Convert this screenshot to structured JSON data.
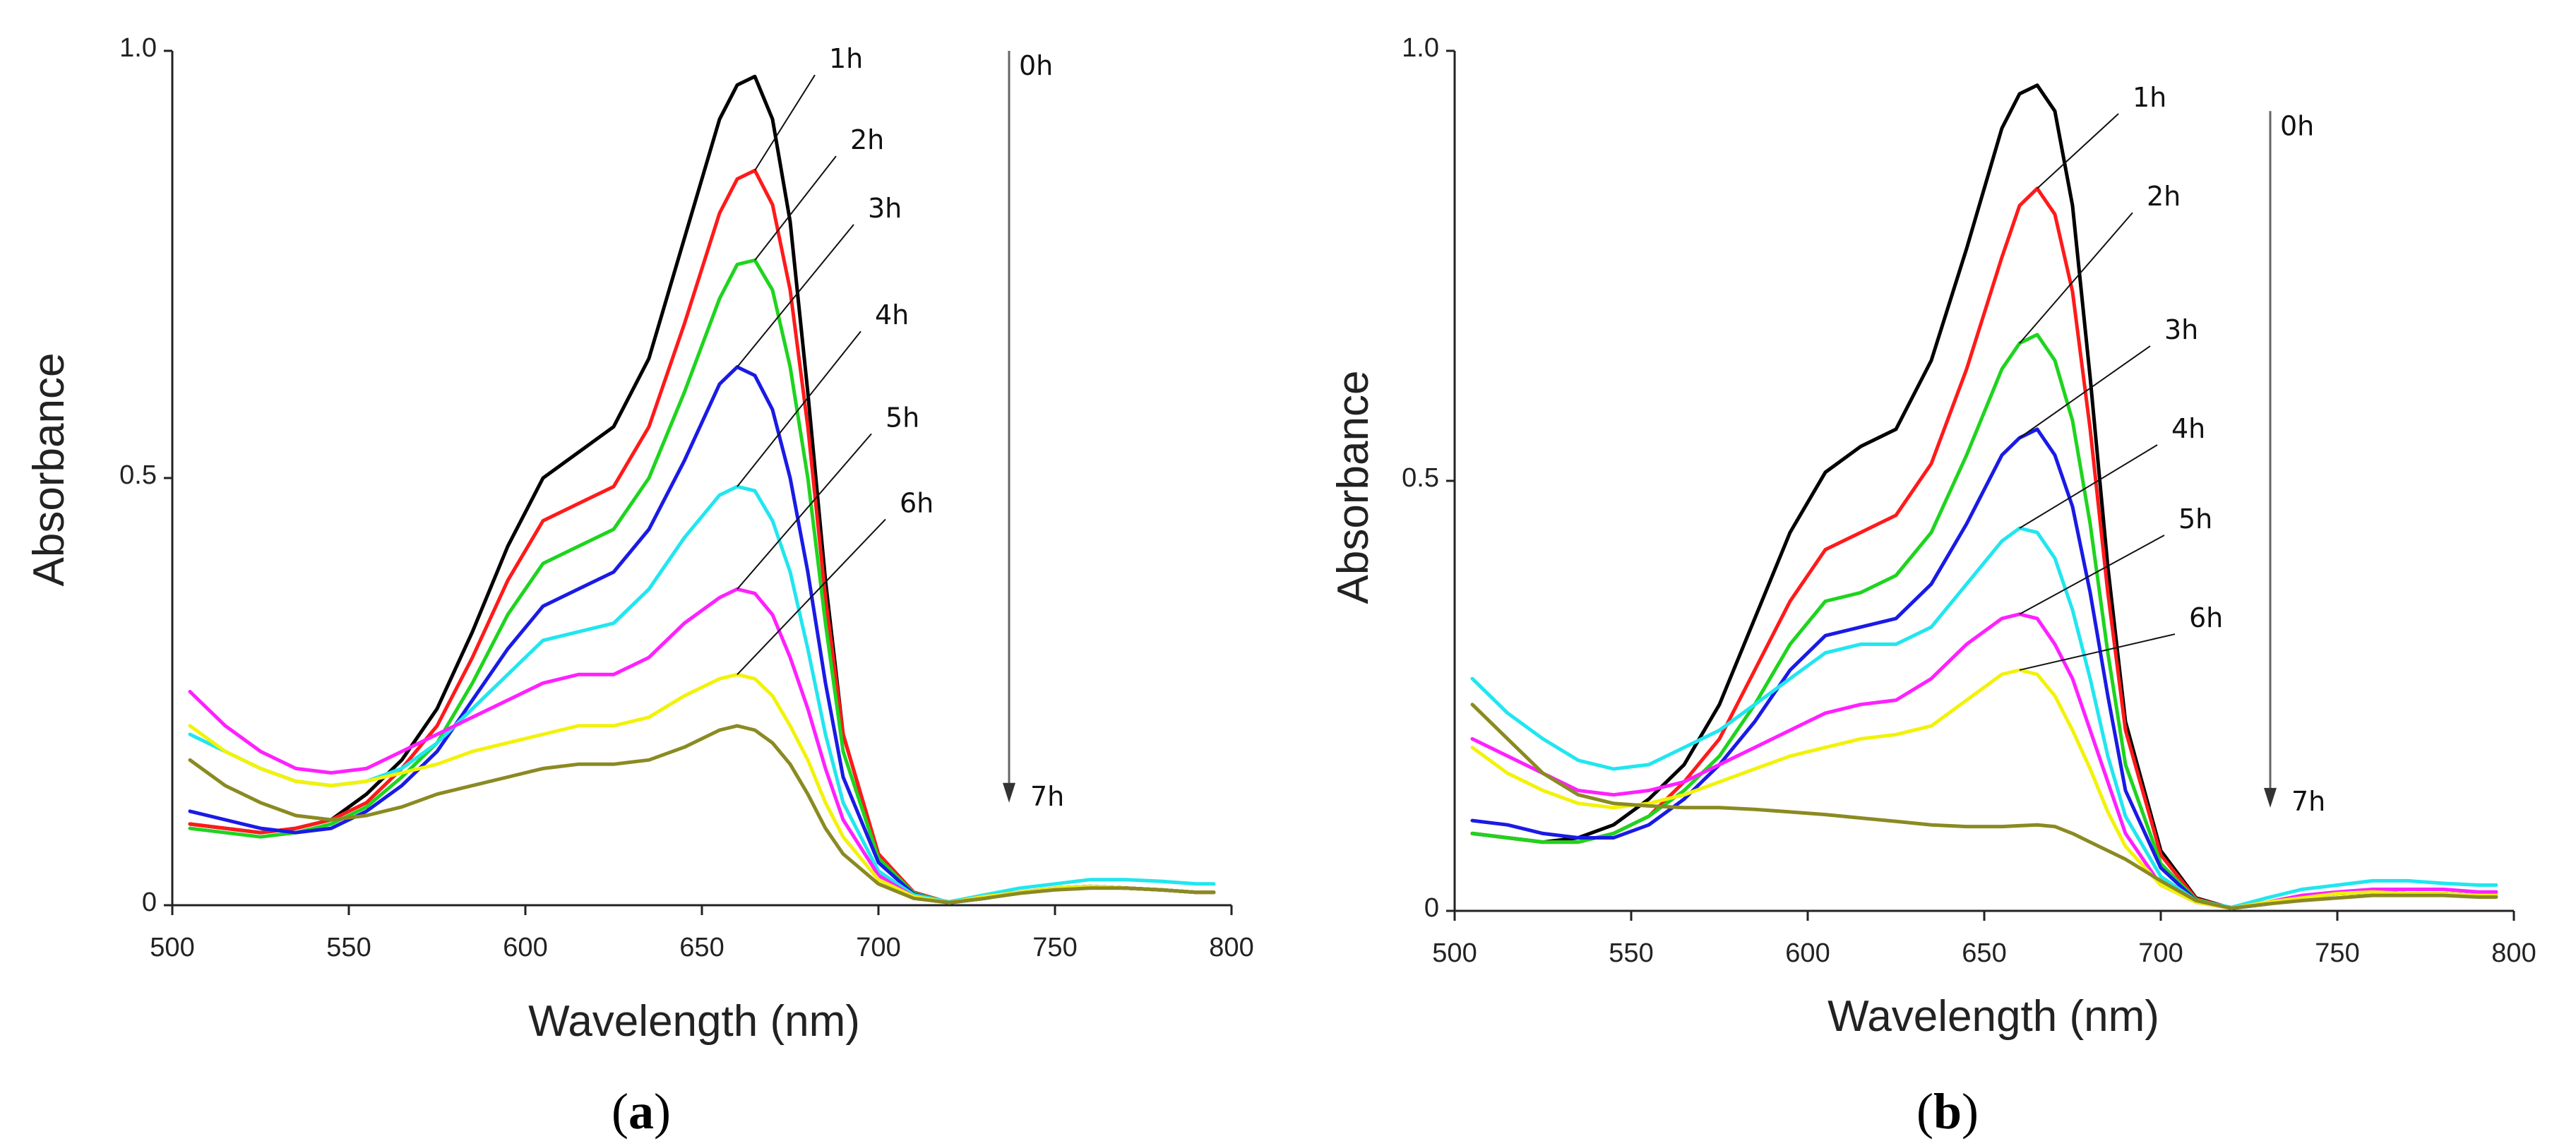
{
  "figure": {
    "colors": {
      "h0": "#000000",
      "h1": "#ff1a1a",
      "h2": "#1ed41e",
      "h3": "#1a1ae6",
      "h4": "#21e6ef",
      "h5": "#ff20ff",
      "h6": "#f2f20a",
      "h7": "#8a8a22",
      "axis": "#222222",
      "arrow": "#666666"
    }
  },
  "chart_data": [
    {
      "type": "line",
      "panel_label": "a",
      "xlabel": "Wavelength (nm)",
      "ylabel": "Absorbance",
      "xlim": [
        500,
        800
      ],
      "ylim": [
        0,
        1.0
      ],
      "xticks": [
        500,
        550,
        600,
        650,
        700,
        750,
        800
      ],
      "xtick_labels": [
        "500",
        "550",
        "600",
        "650",
        "700",
        "750",
        "800"
      ],
      "yticks": [
        0,
        0.5,
        1.0
      ],
      "ytick_labels": [
        "0",
        "0.5",
        "1.0"
      ],
      "arrow": {
        "from_label": "0h",
        "to_label": "7h",
        "x": 737,
        "y_from": 1.0,
        "y_to": 0.12
      },
      "x": [
        505,
        515,
        525,
        535,
        545,
        555,
        565,
        575,
        585,
        595,
        605,
        615,
        625,
        635,
        645,
        655,
        660,
        665,
        670,
        675,
        680,
        685,
        690,
        700,
        710,
        720,
        730,
        740,
        750,
        760,
        770,
        780,
        790,
        795
      ],
      "series": [
        {
          "name": "0h",
          "color_key": "h0",
          "label": "",
          "label_idx": 0,
          "values": [
            0.095,
            0.09,
            0.085,
            0.09,
            0.1,
            0.13,
            0.17,
            0.23,
            0.32,
            0.42,
            0.5,
            0.53,
            0.56,
            0.64,
            0.78,
            0.92,
            0.96,
            0.97,
            0.92,
            0.8,
            0.6,
            0.38,
            0.2,
            0.06,
            0.015,
            0.003,
            0.008,
            0.015,
            0.02,
            0.022,
            0.02,
            0.018,
            0.015,
            0.015
          ]
        },
        {
          "name": "1h",
          "color_key": "h1",
          "label": "1h",
          "label_idx": 17,
          "label_pos": [
            686,
            0.98
          ],
          "values": [
            0.095,
            0.09,
            0.085,
            0.09,
            0.1,
            0.12,
            0.16,
            0.21,
            0.29,
            0.38,
            0.45,
            0.47,
            0.49,
            0.56,
            0.68,
            0.81,
            0.85,
            0.86,
            0.82,
            0.72,
            0.56,
            0.36,
            0.2,
            0.06,
            0.015,
            0.003,
            0.008,
            0.015,
            0.02,
            0.022,
            0.02,
            0.018,
            0.015,
            0.015
          ]
        },
        {
          "name": "2h",
          "color_key": "h2",
          "label": "2h",
          "label_idx": 17,
          "label_pos": [
            692,
            0.885
          ],
          "values": [
            0.09,
            0.085,
            0.08,
            0.085,
            0.095,
            0.115,
            0.15,
            0.19,
            0.26,
            0.34,
            0.4,
            0.42,
            0.44,
            0.5,
            0.6,
            0.71,
            0.75,
            0.755,
            0.72,
            0.63,
            0.5,
            0.33,
            0.18,
            0.055,
            0.014,
            0.003,
            0.008,
            0.015,
            0.02,
            0.022,
            0.02,
            0.018,
            0.015,
            0.015
          ]
        },
        {
          "name": "3h",
          "color_key": "h3",
          "label": "3h",
          "label_idx": 16,
          "label_pos": [
            697,
            0.805
          ],
          "values": [
            0.11,
            0.1,
            0.09,
            0.085,
            0.09,
            0.11,
            0.14,
            0.18,
            0.24,
            0.3,
            0.35,
            0.37,
            0.39,
            0.44,
            0.52,
            0.61,
            0.63,
            0.62,
            0.58,
            0.5,
            0.39,
            0.26,
            0.15,
            0.05,
            0.013,
            0.003,
            0.008,
            0.015,
            0.02,
            0.022,
            0.02,
            0.018,
            0.015,
            0.015
          ]
        },
        {
          "name": "4h",
          "color_key": "h4",
          "label": "4h",
          "label_idx": 16,
          "label_pos": [
            699,
            0.68
          ],
          "values": [
            0.2,
            0.18,
            0.16,
            0.145,
            0.14,
            0.145,
            0.16,
            0.19,
            0.23,
            0.27,
            0.31,
            0.32,
            0.33,
            0.37,
            0.43,
            0.48,
            0.49,
            0.485,
            0.45,
            0.39,
            0.3,
            0.2,
            0.12,
            0.04,
            0.012,
            0.004,
            0.012,
            0.02,
            0.025,
            0.03,
            0.03,
            0.028,
            0.025,
            0.025
          ]
        },
        {
          "name": "5h",
          "color_key": "h5",
          "label": "5h",
          "label_idx": 16,
          "label_pos": [
            702,
            0.56
          ],
          "values": [
            0.25,
            0.21,
            0.18,
            0.16,
            0.155,
            0.16,
            0.18,
            0.2,
            0.22,
            0.24,
            0.26,
            0.27,
            0.27,
            0.29,
            0.33,
            0.36,
            0.37,
            0.365,
            0.34,
            0.29,
            0.23,
            0.16,
            0.1,
            0.035,
            0.01,
            0.003,
            0.01,
            0.015,
            0.02,
            0.022,
            0.02,
            0.018,
            0.015,
            0.015
          ]
        },
        {
          "name": "6h",
          "color_key": "h6",
          "label": "6h",
          "label_idx": 16,
          "label_pos": [
            706,
            0.46
          ],
          "values": [
            0.21,
            0.18,
            0.16,
            0.145,
            0.14,
            0.145,
            0.155,
            0.165,
            0.18,
            0.19,
            0.2,
            0.21,
            0.21,
            0.22,
            0.245,
            0.265,
            0.27,
            0.265,
            0.245,
            0.21,
            0.17,
            0.12,
            0.08,
            0.03,
            0.01,
            0.003,
            0.01,
            0.015,
            0.02,
            0.022,
            0.02,
            0.018,
            0.015,
            0.015
          ]
        },
        {
          "name": "7h",
          "color_key": "h7",
          "label": "",
          "label_idx": 0,
          "values": [
            0.17,
            0.14,
            0.12,
            0.105,
            0.1,
            0.105,
            0.115,
            0.13,
            0.14,
            0.15,
            0.16,
            0.165,
            0.165,
            0.17,
            0.185,
            0.205,
            0.21,
            0.205,
            0.19,
            0.165,
            0.13,
            0.09,
            0.06,
            0.025,
            0.008,
            0.003,
            0.008,
            0.014,
            0.018,
            0.02,
            0.02,
            0.018,
            0.015,
            0.015
          ]
        }
      ]
    },
    {
      "type": "line",
      "panel_label": "b",
      "xlabel": "Wavelength (nm)",
      "ylabel": "Absorbance",
      "xlim": [
        500,
        800
      ],
      "ylim": [
        0,
        1.0
      ],
      "xticks": [
        500,
        550,
        600,
        650,
        700,
        750,
        800
      ],
      "xtick_labels": [
        "500",
        "550",
        "600",
        "650",
        "700",
        "750",
        "800"
      ],
      "yticks": [
        0,
        0.5,
        1.0
      ],
      "ytick_labels": [
        "0",
        "0.5",
        "1.0"
      ],
      "arrow": {
        "from_label": "0h",
        "to_label": "7h",
        "x": 731,
        "y_from": 0.93,
        "y_to": 0.12
      },
      "x": [
        505,
        515,
        525,
        535,
        545,
        555,
        565,
        575,
        585,
        595,
        605,
        615,
        625,
        635,
        645,
        655,
        660,
        665,
        670,
        675,
        680,
        685,
        690,
        700,
        710,
        720,
        730,
        740,
        750,
        760,
        770,
        780,
        790,
        795
      ],
      "series": [
        {
          "name": "0h",
          "color_key": "h0",
          "label": "",
          "label_idx": 0,
          "values": [
            0.09,
            0.085,
            0.08,
            0.085,
            0.1,
            0.13,
            0.17,
            0.24,
            0.34,
            0.44,
            0.51,
            0.54,
            0.56,
            0.64,
            0.77,
            0.91,
            0.95,
            0.96,
            0.93,
            0.82,
            0.62,
            0.4,
            0.22,
            0.07,
            0.015,
            0.003,
            0.008,
            0.015,
            0.02,
            0.022,
            0.02,
            0.02,
            0.018,
            0.018
          ]
        },
        {
          "name": "1h",
          "color_key": "h1",
          "label": "1h",
          "label_idx": 17,
          "label_pos": [
            692,
            0.935
          ],
          "values": [
            0.09,
            0.085,
            0.08,
            0.08,
            0.09,
            0.11,
            0.15,
            0.2,
            0.28,
            0.36,
            0.42,
            0.44,
            0.46,
            0.52,
            0.63,
            0.76,
            0.82,
            0.84,
            0.81,
            0.72,
            0.56,
            0.37,
            0.21,
            0.065,
            0.014,
            0.003,
            0.008,
            0.015,
            0.02,
            0.022,
            0.02,
            0.02,
            0.018,
            0.018
          ]
        },
        {
          "name": "2h",
          "color_key": "h2",
          "label": "2h",
          "label_idx": 16,
          "label_pos": [
            696,
            0.82
          ],
          "values": [
            0.09,
            0.085,
            0.08,
            0.08,
            0.09,
            0.11,
            0.14,
            0.18,
            0.24,
            0.31,
            0.36,
            0.37,
            0.39,
            0.44,
            0.53,
            0.63,
            0.66,
            0.67,
            0.64,
            0.57,
            0.45,
            0.3,
            0.17,
            0.055,
            0.013,
            0.003,
            0.008,
            0.015,
            0.02,
            0.022,
            0.02,
            0.02,
            0.018,
            0.018
          ]
        },
        {
          "name": "3h",
          "color_key": "h3",
          "label": "3h",
          "label_idx": 16,
          "label_pos": [
            701,
            0.665
          ],
          "values": [
            0.105,
            0.1,
            0.09,
            0.085,
            0.085,
            0.1,
            0.13,
            0.17,
            0.22,
            0.28,
            0.32,
            0.33,
            0.34,
            0.38,
            0.45,
            0.53,
            0.55,
            0.56,
            0.53,
            0.47,
            0.37,
            0.25,
            0.14,
            0.05,
            0.012,
            0.003,
            0.008,
            0.015,
            0.02,
            0.022,
            0.02,
            0.02,
            0.018,
            0.018
          ]
        },
        {
          "name": "4h",
          "color_key": "h4",
          "label": "4h",
          "label_idx": 16,
          "label_pos": [
            703,
            0.55
          ],
          "values": [
            0.27,
            0.23,
            0.2,
            0.175,
            0.165,
            0.17,
            0.19,
            0.21,
            0.24,
            0.27,
            0.3,
            0.31,
            0.31,
            0.33,
            0.38,
            0.43,
            0.445,
            0.44,
            0.41,
            0.35,
            0.27,
            0.18,
            0.11,
            0.04,
            0.012,
            0.004,
            0.015,
            0.025,
            0.03,
            0.035,
            0.035,
            0.032,
            0.03,
            0.03
          ]
        },
        {
          "name": "5h",
          "color_key": "h5",
          "label": "5h",
          "label_idx": 16,
          "label_pos": [
            705,
            0.445
          ],
          "values": [
            0.2,
            0.18,
            0.16,
            0.14,
            0.135,
            0.14,
            0.15,
            0.17,
            0.19,
            0.21,
            0.23,
            0.24,
            0.245,
            0.27,
            0.31,
            0.34,
            0.345,
            0.34,
            0.31,
            0.27,
            0.21,
            0.15,
            0.09,
            0.03,
            0.01,
            0.003,
            0.01,
            0.018,
            0.022,
            0.025,
            0.025,
            0.025,
            0.022,
            0.022
          ]
        },
        {
          "name": "6h",
          "color_key": "h6",
          "label": "6h",
          "label_idx": 16,
          "label_pos": [
            708,
            0.33
          ],
          "values": [
            0.19,
            0.16,
            0.14,
            0.125,
            0.12,
            0.125,
            0.135,
            0.15,
            0.165,
            0.18,
            0.19,
            0.2,
            0.205,
            0.215,
            0.245,
            0.275,
            0.28,
            0.275,
            0.25,
            0.21,
            0.165,
            0.115,
            0.075,
            0.03,
            0.01,
            0.003,
            0.01,
            0.015,
            0.02,
            0.022,
            0.02,
            0.02,
            0.018,
            0.018
          ]
        },
        {
          "name": "7h",
          "color_key": "h7",
          "label": "",
          "label_idx": 0,
          "values": [
            0.24,
            0.2,
            0.16,
            0.135,
            0.125,
            0.122,
            0.12,
            0.12,
            0.118,
            0.115,
            0.112,
            0.108,
            0.104,
            0.1,
            0.098,
            0.098,
            0.099,
            0.1,
            0.098,
            0.09,
            0.08,
            0.07,
            0.06,
            0.035,
            0.012,
            0.003,
            0.008,
            0.012,
            0.015,
            0.018,
            0.018,
            0.018,
            0.016,
            0.016
          ]
        }
      ]
    }
  ]
}
